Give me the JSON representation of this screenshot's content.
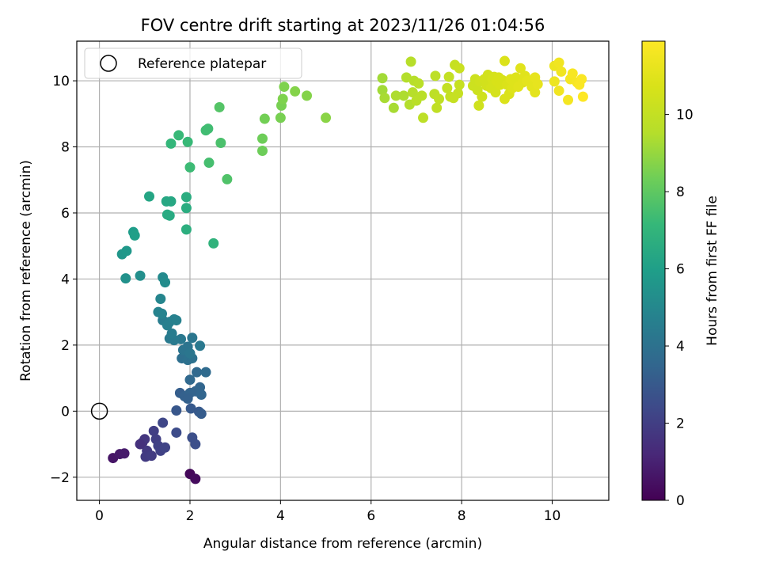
{
  "chart_data": {
    "type": "scatter",
    "title": "FOV centre drift starting at 2023/11/26 01:04:56",
    "xlabel": "Angular distance from reference (arcmin)",
    "ylabel": "Rotation from reference (arcmin)",
    "xlim": [
      -0.5,
      11.25
    ],
    "ylim": [
      -2.7,
      11.2
    ],
    "xticks": [
      0,
      2,
      4,
      6,
      8,
      10
    ],
    "yticks": [
      -2,
      0,
      2,
      4,
      6,
      8,
      10
    ],
    "grid": true,
    "legend": {
      "placement": "top-left",
      "entries": [
        "Reference platepar"
      ]
    },
    "reference_point": {
      "x": 0,
      "y": 0,
      "marker": "open-circle"
    },
    "colorbar": {
      "label": "Hours from first FF file",
      "colormap": "viridis",
      "range": [
        0,
        11.9
      ],
      "ticks": [
        0,
        2,
        4,
        6,
        8,
        10
      ]
    },
    "points": [
      {
        "x": 2.0,
        "y": -1.9,
        "h": 0.2
      },
      {
        "x": 2.12,
        "y": -2.05,
        "h": 0.3
      },
      {
        "x": 0.3,
        "y": -1.42,
        "h": 0.6
      },
      {
        "x": 0.45,
        "y": -1.3,
        "h": 0.7
      },
      {
        "x": 0.55,
        "y": -1.28,
        "h": 0.8
      },
      {
        "x": 0.95,
        "y": -0.95,
        "h": 1.6
      },
      {
        "x": 1.0,
        "y": -0.85,
        "h": 1.7
      },
      {
        "x": 1.05,
        "y": -1.2,
        "h": 1.8
      },
      {
        "x": 1.02,
        "y": -1.38,
        "h": 1.85
      },
      {
        "x": 1.15,
        "y": -1.35,
        "h": 1.9
      },
      {
        "x": 1.2,
        "y": -0.6,
        "h": 2.0
      },
      {
        "x": 1.25,
        "y": -0.85,
        "h": 2.0
      },
      {
        "x": 1.3,
        "y": -1.05,
        "h": 2.1
      },
      {
        "x": 1.35,
        "y": -1.2,
        "h": 2.1
      },
      {
        "x": 1.45,
        "y": -1.1,
        "h": 2.2
      },
      {
        "x": 1.4,
        "y": -0.35,
        "h": 2.3
      },
      {
        "x": 1.7,
        "y": -0.65,
        "h": 2.5
      },
      {
        "x": 2.05,
        "y": -0.8,
        "h": 2.6
      },
      {
        "x": 2.12,
        "y": -1.0,
        "h": 2.6
      },
      {
        "x": 0.9,
        "y": -1.0,
        "h": 1.5
      },
      {
        "x": 1.7,
        "y": 0.02,
        "h": 2.9
      },
      {
        "x": 2.02,
        "y": 0.08,
        "h": 3.0
      },
      {
        "x": 2.2,
        "y": -0.02,
        "h": 3.0
      },
      {
        "x": 2.25,
        "y": -0.08,
        "h": 3.1
      },
      {
        "x": 1.78,
        "y": 0.55,
        "h": 3.2
      },
      {
        "x": 1.88,
        "y": 0.45,
        "h": 3.3
      },
      {
        "x": 2.0,
        "y": 0.55,
        "h": 3.4
      },
      {
        "x": 2.12,
        "y": 0.6,
        "h": 3.4
      },
      {
        "x": 2.25,
        "y": 0.5,
        "h": 3.5
      },
      {
        "x": 2.22,
        "y": 0.72,
        "h": 3.5
      },
      {
        "x": 2.0,
        "y": 0.95,
        "h": 3.6
      },
      {
        "x": 2.15,
        "y": 1.18,
        "h": 3.6
      },
      {
        "x": 2.35,
        "y": 1.18,
        "h": 3.7
      },
      {
        "x": 1.95,
        "y": 0.38,
        "h": 3.3
      },
      {
        "x": 1.82,
        "y": 1.6,
        "h": 3.9
      },
      {
        "x": 1.95,
        "y": 1.55,
        "h": 4.0
      },
      {
        "x": 2.05,
        "y": 1.6,
        "h": 4.0
      },
      {
        "x": 1.85,
        "y": 1.85,
        "h": 4.1
      },
      {
        "x": 1.95,
        "y": 1.95,
        "h": 4.1
      },
      {
        "x": 2.0,
        "y": 1.75,
        "h": 4.2
      },
      {
        "x": 2.05,
        "y": 2.22,
        "h": 4.2
      },
      {
        "x": 2.22,
        "y": 1.98,
        "h": 4.3
      },
      {
        "x": 1.8,
        "y": 2.18,
        "h": 4.3
      },
      {
        "x": 1.55,
        "y": 2.2,
        "h": 4.4
      },
      {
        "x": 1.65,
        "y": 2.15,
        "h": 4.4
      },
      {
        "x": 1.6,
        "y": 2.35,
        "h": 4.5
      },
      {
        "x": 1.4,
        "y": 2.75,
        "h": 4.5
      },
      {
        "x": 1.5,
        "y": 2.6,
        "h": 4.6
      },
      {
        "x": 1.55,
        "y": 2.7,
        "h": 4.6
      },
      {
        "x": 1.65,
        "y": 2.78,
        "h": 4.7
      },
      {
        "x": 1.7,
        "y": 2.75,
        "h": 4.7
      },
      {
        "x": 1.3,
        "y": 3.0,
        "h": 4.8
      },
      {
        "x": 1.38,
        "y": 2.95,
        "h": 4.8
      },
      {
        "x": 1.35,
        "y": 3.4,
        "h": 4.9
      },
      {
        "x": 1.4,
        "y": 4.05,
        "h": 5.1
      },
      {
        "x": 1.45,
        "y": 3.9,
        "h": 5.2
      },
      {
        "x": 0.9,
        "y": 4.1,
        "h": 5.3
      },
      {
        "x": 0.58,
        "y": 4.02,
        "h": 5.4
      },
      {
        "x": 0.5,
        "y": 4.75,
        "h": 5.6
      },
      {
        "x": 0.6,
        "y": 4.85,
        "h": 5.7
      },
      {
        "x": 0.75,
        "y": 5.42,
        "h": 5.9
      },
      {
        "x": 0.78,
        "y": 5.32,
        "h": 6.0
      },
      {
        "x": 1.1,
        "y": 6.5,
        "h": 6.3
      },
      {
        "x": 1.48,
        "y": 6.35,
        "h": 6.4
      },
      {
        "x": 1.58,
        "y": 6.35,
        "h": 6.4
      },
      {
        "x": 1.5,
        "y": 5.95,
        "h": 6.5
      },
      {
        "x": 1.55,
        "y": 5.92,
        "h": 6.5
      },
      {
        "x": 1.92,
        "y": 6.48,
        "h": 6.6
      },
      {
        "x": 1.92,
        "y": 6.15,
        "h": 6.6
      },
      {
        "x": 1.92,
        "y": 5.5,
        "h": 6.7
      },
      {
        "x": 2.52,
        "y": 5.08,
        "h": 6.9
      },
      {
        "x": 1.58,
        "y": 8.1,
        "h": 7.1
      },
      {
        "x": 1.75,
        "y": 8.35,
        "h": 7.2
      },
      {
        "x": 1.95,
        "y": 8.15,
        "h": 7.2
      },
      {
        "x": 2.0,
        "y": 7.38,
        "h": 7.3
      },
      {
        "x": 2.35,
        "y": 8.5,
        "h": 7.4
      },
      {
        "x": 2.4,
        "y": 8.55,
        "h": 7.4
      },
      {
        "x": 2.42,
        "y": 7.52,
        "h": 7.5
      },
      {
        "x": 2.68,
        "y": 8.12,
        "h": 7.6
      },
      {
        "x": 2.82,
        "y": 7.02,
        "h": 7.7
      },
      {
        "x": 2.65,
        "y": 9.2,
        "h": 7.8
      },
      {
        "x": 3.6,
        "y": 8.25,
        "h": 8.3
      },
      {
        "x": 3.6,
        "y": 7.88,
        "h": 8.3
      },
      {
        "x": 3.65,
        "y": 8.85,
        "h": 8.4
      },
      {
        "x": 4.0,
        "y": 8.88,
        "h": 8.5
      },
      {
        "x": 4.02,
        "y": 9.25,
        "h": 8.5
      },
      {
        "x": 4.05,
        "y": 9.45,
        "h": 8.6
      },
      {
        "x": 4.08,
        "y": 9.82,
        "h": 8.6
      },
      {
        "x": 4.32,
        "y": 9.68,
        "h": 8.7
      },
      {
        "x": 4.58,
        "y": 9.55,
        "h": 8.7
      },
      {
        "x": 5.0,
        "y": 8.88,
        "h": 8.8
      },
      {
        "x": 6.25,
        "y": 10.08,
        "h": 9.2
      },
      {
        "x": 6.25,
        "y": 9.72,
        "h": 9.2
      },
      {
        "x": 6.3,
        "y": 9.48,
        "h": 9.3
      },
      {
        "x": 6.5,
        "y": 9.18,
        "h": 9.3
      },
      {
        "x": 6.55,
        "y": 9.55,
        "h": 9.4
      },
      {
        "x": 6.72,
        "y": 9.55,
        "h": 9.4
      },
      {
        "x": 6.78,
        "y": 10.1,
        "h": 9.5
      },
      {
        "x": 6.85,
        "y": 9.28,
        "h": 9.5
      },
      {
        "x": 6.88,
        "y": 10.58,
        "h": 9.6
      },
      {
        "x": 6.92,
        "y": 9.65,
        "h": 9.6
      },
      {
        "x": 6.95,
        "y": 10.0,
        "h": 9.6
      },
      {
        "x": 7.0,
        "y": 9.4,
        "h": 9.7
      },
      {
        "x": 7.05,
        "y": 9.92,
        "h": 9.7
      },
      {
        "x": 7.12,
        "y": 9.55,
        "h": 9.7
      },
      {
        "x": 7.15,
        "y": 8.88,
        "h": 9.8
      },
      {
        "x": 7.4,
        "y": 9.6,
        "h": 9.8
      },
      {
        "x": 7.42,
        "y": 10.15,
        "h": 9.8
      },
      {
        "x": 7.45,
        "y": 9.18,
        "h": 9.9
      },
      {
        "x": 7.5,
        "y": 9.45,
        "h": 9.9
      },
      {
        "x": 7.68,
        "y": 9.78,
        "h": 10.0
      },
      {
        "x": 7.72,
        "y": 10.12,
        "h": 10.0
      },
      {
        "x": 7.75,
        "y": 9.52,
        "h": 10.0
      },
      {
        "x": 7.85,
        "y": 10.48,
        "h": 10.1
      },
      {
        "x": 7.82,
        "y": 9.48,
        "h": 10.1
      },
      {
        "x": 7.92,
        "y": 9.62,
        "h": 10.1
      },
      {
        "x": 7.95,
        "y": 9.88,
        "h": 10.1
      },
      {
        "x": 7.95,
        "y": 10.38,
        "h": 10.2
      },
      {
        "x": 8.25,
        "y": 9.85,
        "h": 10.3
      },
      {
        "x": 8.3,
        "y": 10.05,
        "h": 10.3
      },
      {
        "x": 8.35,
        "y": 9.72,
        "h": 10.3
      },
      {
        "x": 8.38,
        "y": 9.25,
        "h": 10.4
      },
      {
        "x": 8.4,
        "y": 9.98,
        "h": 10.4
      },
      {
        "x": 8.45,
        "y": 9.52,
        "h": 10.4
      },
      {
        "x": 8.5,
        "y": 10.05,
        "h": 10.5
      },
      {
        "x": 8.55,
        "y": 9.85,
        "h": 10.5
      },
      {
        "x": 8.58,
        "y": 10.18,
        "h": 10.5
      },
      {
        "x": 8.62,
        "y": 9.95,
        "h": 10.5
      },
      {
        "x": 8.65,
        "y": 9.78,
        "h": 10.6
      },
      {
        "x": 8.68,
        "y": 10.05,
        "h": 10.6
      },
      {
        "x": 8.72,
        "y": 10.12,
        "h": 10.6
      },
      {
        "x": 8.75,
        "y": 9.65,
        "h": 10.6
      },
      {
        "x": 8.78,
        "y": 9.98,
        "h": 10.7
      },
      {
        "x": 8.82,
        "y": 10.1,
        "h": 10.7
      },
      {
        "x": 8.85,
        "y": 9.88,
        "h": 10.7
      },
      {
        "x": 8.9,
        "y": 10.02,
        "h": 10.7
      },
      {
        "x": 8.95,
        "y": 9.45,
        "h": 10.8
      },
      {
        "x": 8.95,
        "y": 10.6,
        "h": 10.8
      },
      {
        "x": 9.0,
        "y": 9.88,
        "h": 10.8
      },
      {
        "x": 9.05,
        "y": 9.6,
        "h": 10.8
      },
      {
        "x": 9.08,
        "y": 10.05,
        "h": 10.9
      },
      {
        "x": 9.12,
        "y": 9.78,
        "h": 10.9
      },
      {
        "x": 9.15,
        "y": 9.95,
        "h": 10.9
      },
      {
        "x": 9.2,
        "y": 10.1,
        "h": 10.9
      },
      {
        "x": 9.25,
        "y": 9.82,
        "h": 11.0
      },
      {
        "x": 9.3,
        "y": 10.38,
        "h": 11.0
      },
      {
        "x": 9.35,
        "y": 9.95,
        "h": 11.0
      },
      {
        "x": 9.4,
        "y": 10.15,
        "h": 11.0
      },
      {
        "x": 9.45,
        "y": 10.0,
        "h": 11.1
      },
      {
        "x": 9.55,
        "y": 9.82,
        "h": 11.1
      },
      {
        "x": 9.62,
        "y": 9.65,
        "h": 11.1
      },
      {
        "x": 9.62,
        "y": 10.1,
        "h": 11.2
      },
      {
        "x": 9.68,
        "y": 9.9,
        "h": 11.2
      },
      {
        "x": 10.05,
        "y": 10.45,
        "h": 11.4
      },
      {
        "x": 10.05,
        "y": 9.98,
        "h": 11.4
      },
      {
        "x": 10.15,
        "y": 10.55,
        "h": 11.5
      },
      {
        "x": 10.2,
        "y": 10.28,
        "h": 11.5
      },
      {
        "x": 10.15,
        "y": 9.7,
        "h": 11.5
      },
      {
        "x": 10.35,
        "y": 9.42,
        "h": 11.6
      },
      {
        "x": 10.4,
        "y": 10.05,
        "h": 11.6
      },
      {
        "x": 10.45,
        "y": 10.22,
        "h": 11.7
      },
      {
        "x": 10.55,
        "y": 9.95,
        "h": 11.7
      },
      {
        "x": 10.6,
        "y": 9.88,
        "h": 11.8
      },
      {
        "x": 10.65,
        "y": 10.05,
        "h": 11.8
      },
      {
        "x": 10.68,
        "y": 9.52,
        "h": 11.9
      }
    ]
  }
}
